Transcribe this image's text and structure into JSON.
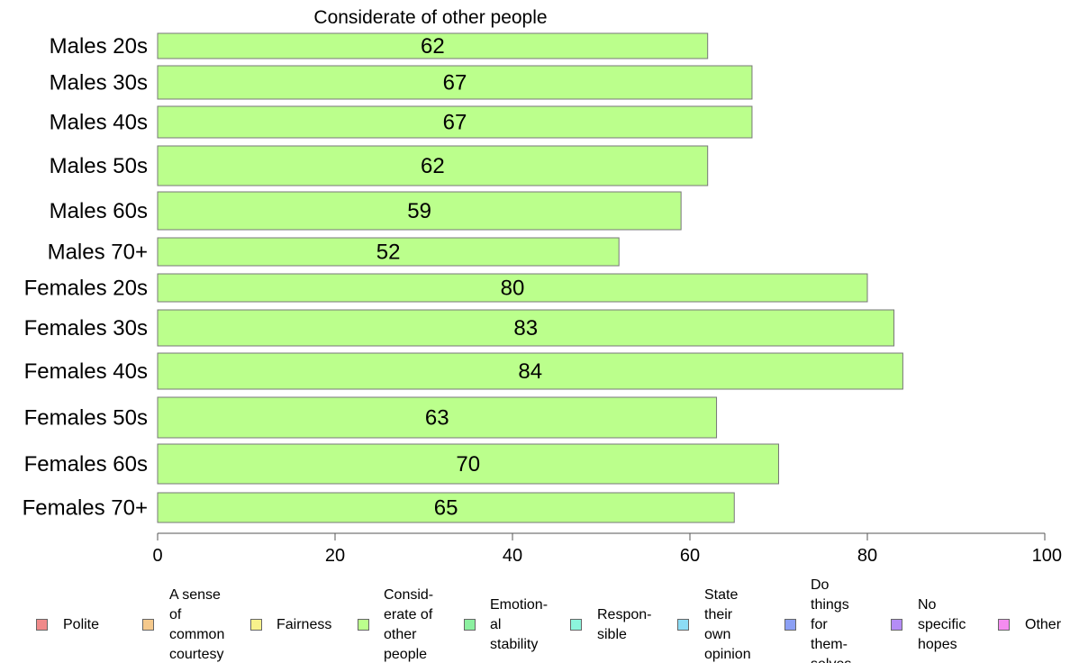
{
  "chart_data": {
    "type": "bar",
    "orientation": "horizontal",
    "title": "Considerate of other people",
    "categories": [
      "Males 20s",
      "Males 30s",
      "Males 40s",
      "Males 50s",
      "Males 60s",
      "Males 70+",
      "Females 20s",
      "Females 30s",
      "Females 40s",
      "Females 50s",
      "Females 60s",
      "Females 70+"
    ],
    "values": [
      62,
      67,
      67,
      62,
      59,
      52,
      80,
      83,
      84,
      63,
      70,
      65
    ],
    "xlim": [
      0,
      100
    ],
    "xticks": [
      0,
      20,
      40,
      60,
      80,
      100
    ],
    "grid": false,
    "bar_color": "#bbff8c",
    "bar_border": "#777777"
  },
  "legend": [
    {
      "label": "Polite",
      "color": "#f08a8a"
    },
    {
      "label": "A sense\nof\ncommon\ncourtesy",
      "color": "#f5c98c"
    },
    {
      "label": "Fairness",
      "color": "#f8f28c"
    },
    {
      "label": "Consid-\nerate of\nother\npeople",
      "color": "#bbff8c"
    },
    {
      "label": "Emotion-\nal\nstability",
      "color": "#8cf0a0"
    },
    {
      "label": "Respon-\nsible",
      "color": "#8cf5dc"
    },
    {
      "label": "State\ntheir\nown\nopinion",
      "color": "#8cdcf5"
    },
    {
      "label": "Do\nthings\nfor\nthem-\nselves",
      "color": "#8ca0f5"
    },
    {
      "label": "No\nspecific\nhopes",
      "color": "#b48cf5"
    },
    {
      "label": "Other",
      "color": "#f58cf0"
    }
  ]
}
